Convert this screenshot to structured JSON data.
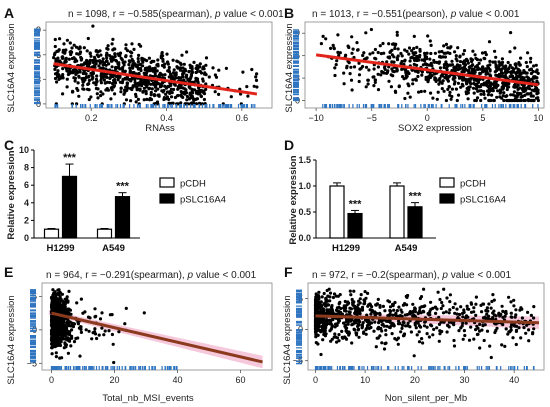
{
  "panels": [
    {
      "letter": "A",
      "title_prefix": "n = 1098, r = −0.585(spearman), ",
      "title_italic": "p",
      "title_suffix": " value < 0.001",
      "xlabel": "RNAss",
      "ylabel": "SLC16A4 expression"
    },
    {
      "letter": "B",
      "title_prefix": "n = 1013, r = −0.551(pearson), ",
      "title_italic": "p",
      "title_suffix": " value < 0.001",
      "xlabel": "SOX2 expression",
      "ylabel": "SLC16A4 expression"
    },
    {
      "letter": "C",
      "ylabel": "Relative expression",
      "legend": [
        "pCDH",
        "pSLC16A4"
      ]
    },
    {
      "letter": "D",
      "ylabel": "Relative expression",
      "legend": [
        "pCDH",
        "pSLC16A4"
      ]
    },
    {
      "letter": "E",
      "title_prefix": "n = 964, r = −0.291(spearman), ",
      "title_italic": "p",
      "title_suffix": " value < 0.001",
      "xlabel": "Total_nb_MSI_events",
      "ylabel": "SLC16A4 expression"
    },
    {
      "letter": "F",
      "title_prefix": "n = 972, r = −0.2(spearman), ",
      "title_italic": "p",
      "title_suffix": " value < 0.001",
      "xlabel": "Non_silent_per_Mb",
      "ylabel": "SLC16A4 expression"
    }
  ],
  "chart_data": [
    {
      "id": "A",
      "type": "scatter",
      "xlim": [
        0.08,
        0.68
      ],
      "ylim": [
        -0.5,
        10
      ],
      "xticks": [
        0.2,
        0.4,
        0.6
      ],
      "yticks": [
        0,
        3,
        6,
        9
      ],
      "n": 1098,
      "x_range": [
        0.1,
        0.64
      ],
      "y_range": [
        0,
        9.5
      ],
      "fit": [
        [
          0.1,
          4.9
        ],
        [
          0.64,
          1.2
        ]
      ],
      "fit_color": "#e3241b",
      "point_color": "#000000",
      "rug_color": "#2e74c0"
    },
    {
      "id": "B",
      "type": "scatter",
      "xlim": [
        -11,
        10.5
      ],
      "ylim": [
        -1,
        10.5
      ],
      "xticks": [
        -10,
        -5,
        0,
        5,
        10
      ],
      "yticks": [
        0,
        3,
        6,
        9
      ],
      "n": 1013,
      "x_range": [
        -10,
        10
      ],
      "y_range": [
        0,
        9.5
      ],
      "fit": [
        [
          -10,
          6.1
        ],
        [
          10,
          2.1
        ]
      ],
      "fit_color": "#e3241b",
      "point_color": "#000000",
      "rug_color": "#2e74c0"
    },
    {
      "id": "C",
      "type": "bar",
      "categories": [
        "H1299",
        "A549"
      ],
      "ylim": [
        0,
        10
      ],
      "yticks": [
        0,
        2,
        4,
        6,
        8,
        10
      ],
      "series": [
        {
          "name": "pCDH",
          "values": [
            1.0,
            1.0
          ],
          "errors": [
            0.08,
            0.08
          ],
          "fill": "#ffffff"
        },
        {
          "name": "pSLC16A4",
          "values": [
            7.0,
            4.7
          ],
          "errors": [
            1.4,
            0.45
          ],
          "fill": "#000000"
        }
      ],
      "significance": [
        "***",
        "***"
      ]
    },
    {
      "id": "D",
      "type": "bar",
      "categories": [
        "H1299",
        "A549"
      ],
      "ylim": [
        0,
        1.5
      ],
      "yticks": [
        0.0,
        0.5,
        1.0,
        1.5
      ],
      "series": [
        {
          "name": "pCDH",
          "values": [
            1.0,
            1.0
          ],
          "errors": [
            0.06,
            0.06
          ],
          "fill": "#ffffff"
        },
        {
          "name": "pSLC16A4",
          "values": [
            0.47,
            0.6
          ],
          "errors": [
            0.06,
            0.08
          ],
          "fill": "#000000"
        }
      ],
      "significance": [
        "***",
        "***"
      ]
    },
    {
      "id": "E",
      "type": "scatter",
      "xlim": [
        -3,
        70
      ],
      "ylim": [
        -6,
        7
      ],
      "xticks": [
        0,
        20,
        40,
        60
      ],
      "yticks": [
        -5,
        0,
        5
      ],
      "n": 964,
      "x_range": [
        0,
        40
      ],
      "y_range": [
        -5,
        6
      ],
      "fit": [
        [
          0,
          2.5
        ],
        [
          67,
          -4.8
        ]
      ],
      "fit_color": "#8b3a1e",
      "band_color": "#f3b6cf",
      "point_color": "#000000",
      "rug_color": "#2e74c0"
    },
    {
      "id": "F",
      "type": "scatter",
      "xlim": [
        -1.5,
        46
      ],
      "ylim": [
        -6.5,
        7.5
      ],
      "xticks": [
        0,
        10,
        20,
        30,
        40
      ],
      "yticks": [
        -5,
        0,
        5
      ],
      "n": 972,
      "x_range": [
        0,
        44
      ],
      "y_range": [
        -5.5,
        6.5
      ],
      "fit": [
        [
          0,
          2.2
        ],
        [
          45,
          1.1
        ]
      ],
      "fit_color": "#8b3a1e",
      "band_color": "#f3b6cf",
      "point_color": "#000000",
      "rug_color": "#2e74c0"
    }
  ]
}
